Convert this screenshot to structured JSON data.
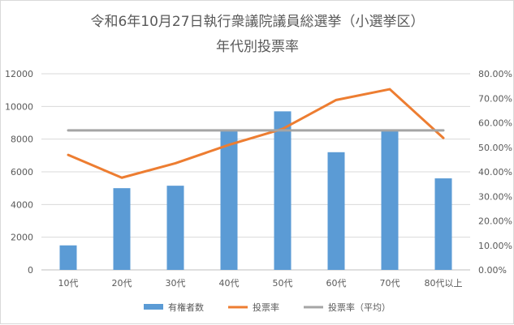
{
  "chart_data": {
    "type": "bar",
    "title": "令和6年10月27日執行衆議院議員総選挙（小選挙区）",
    "subtitle": "年代別投票率",
    "categories": [
      "10代",
      "20代",
      "30代",
      "40代",
      "50代",
      "60代",
      "70代",
      "80代以上"
    ],
    "series": [
      {
        "name": "有権者数",
        "type": "bar",
        "axis": "left",
        "color": "#5b9bd5",
        "values": [
          1500,
          5000,
          5150,
          8500,
          9700,
          7200,
          8500,
          5600
        ]
      },
      {
        "name": "投票率",
        "type": "line",
        "axis": "right",
        "color": "#ed7d31",
        "values": [
          46.9,
          37.6,
          43.5,
          51.0,
          57.5,
          69.3,
          73.7,
          53.8
        ]
      },
      {
        "name": "投票率（平均）",
        "type": "line",
        "axis": "right",
        "color": "#a5a5a5",
        "values": [
          56.9,
          56.9,
          56.9,
          56.9,
          56.9,
          56.9,
          56.9,
          56.9
        ]
      }
    ],
    "y_left": {
      "min": 0,
      "max": 12000,
      "ticks": [
        "0",
        "2000",
        "4000",
        "6000",
        "8000",
        "10000",
        "12000"
      ]
    },
    "y_right": {
      "min": 0,
      "max": 80,
      "ticks": [
        "0.00%",
        "10.00%",
        "20.00%",
        "30.00%",
        "40.00%",
        "50.00%",
        "60.00%",
        "70.00%",
        "80.00%"
      ]
    },
    "grid": true,
    "legend_position": "bottom"
  }
}
